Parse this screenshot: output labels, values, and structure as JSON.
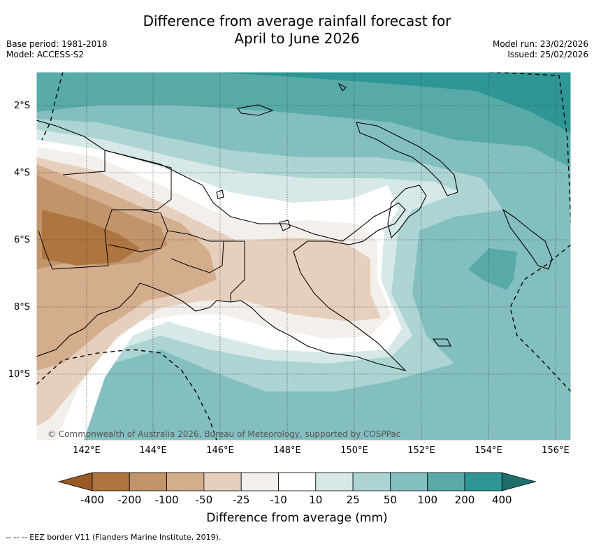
{
  "title": {
    "line1": "Difference from average rainfall forecast for",
    "line2": "April to June 2026"
  },
  "meta": {
    "base_period": "Base period: 1981-2018",
    "model": "Model: ACCESS-S2",
    "model_run": "Model run: 23/02/2026",
    "issued": "Issued: 25/02/2026"
  },
  "map": {
    "lat_labels": [
      "2°S",
      "4°S",
      "6°S",
      "8°S",
      "10°S"
    ],
    "lon_labels": [
      "142°E",
      "144°E",
      "146°E",
      "148°E",
      "150°E",
      "152°E",
      "154°E",
      "156°E"
    ],
    "copyright": "© Commonwealth of Australia 2026, Bureau of Meteorology, supported by COSPPac"
  },
  "colorbar": {
    "ticks": [
      "-400",
      "-200",
      "-100",
      "-50",
      "-25",
      "-10",
      "10",
      "25",
      "50",
      "100",
      "200",
      "400"
    ],
    "colors": [
      "#9a5a26",
      "#ae7540",
      "#c2946a",
      "#d4ad8d",
      "#e6d0bd",
      "#f3efea",
      "#ffffff",
      "#d6e8e7",
      "#acd4d3",
      "#84bfbf",
      "#58aaa9",
      "#2e9694",
      "#1d6e6c"
    ],
    "label": "Difference from average (mm)"
  },
  "footer": "--  --  -- EEZ border V11 (Flanders Marine Institute, 2019)."
}
